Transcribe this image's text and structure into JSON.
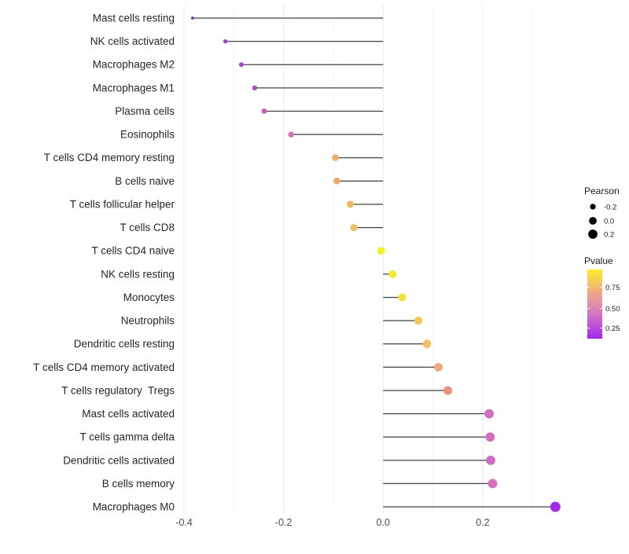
{
  "chart_data": {
    "type": "lollipop",
    "orientation": "horizontal",
    "title": "",
    "xlabel": "",
    "ylabel": "",
    "categories": [
      "Mast cells resting",
      "NK cells activated",
      "Macrophages M2",
      "Macrophages M1",
      "Plasma cells",
      "Eosinophils",
      "T cells CD4 memory resting",
      "B cells naive",
      "T cells follicular helper",
      "T cells CD8",
      "T cells CD4 naive",
      "NK cells resting",
      "Monocytes",
      "Neutrophils",
      "Dendritic cells resting",
      "T cells CD4 memory activated",
      "T cells regulatory  Tregs",
      "Mast cells activated",
      "T cells gamma delta",
      "Dendritic cells activated",
      "B cells memory",
      "Macrophages M0"
    ],
    "series": [
      {
        "name": "Pearson",
        "values": [
          -0.383,
          -0.317,
          -0.285,
          -0.258,
          -0.239,
          -0.185,
          -0.096,
          -0.093,
          -0.066,
          -0.059,
          -0.004,
          0.019,
          0.038,
          0.071,
          0.088,
          0.111,
          0.13,
          0.213,
          0.215,
          0.216,
          0.22,
          0.346
        ]
      }
    ],
    "point_colors": [
      "#7D26C3",
      "#A43BD4",
      "#A843CA",
      "#AF4CC5",
      "#C45BBE",
      "#D473AC",
      "#ECAE6B",
      "#EAAA6C",
      "#EFBA5C",
      "#F0C160",
      "#F6EE24",
      "#F4EA2D",
      "#F2E137",
      "#F2CA57",
      "#F1C066",
      "#EEA77E",
      "#E8927F",
      "#D36FC0",
      "#D36FC0",
      "#D16CC2",
      "#D670BE",
      "#A22BE8"
    ],
    "xlim": [
      -0.45,
      0.39
    ],
    "x_ticks": [
      {
        "value": -0.4,
        "label": "-0.4"
      },
      {
        "value": -0.2,
        "label": "-0.2"
      },
      {
        "value": 0.0,
        "label": "0.0"
      },
      {
        "value": 0.2,
        "label": "0.2"
      }
    ],
    "grid": {
      "on": true,
      "step": 0.1,
      "range": [
        -0.4,
        0.3
      ],
      "major_color": "#EAEAEA",
      "minor_color": "#F5F5F5"
    },
    "stem_color": "#404040",
    "axis_text_color": "#4D4D4D",
    "category_text_color": "#262626",
    "background": "#FFFFFF",
    "legends": {
      "size": {
        "title": "Pearson",
        "dot_color": "#000000",
        "entries": [
          {
            "label": "-0.2",
            "value": -0.2
          },
          {
            "label": "0.0",
            "value": 0.0
          },
          {
            "label": "0.2",
            "value": 0.2
          }
        ]
      },
      "color": {
        "title": "Pvalue",
        "tick_labels": [
          "0.75",
          "0.50",
          "0.25"
        ],
        "gradient_top_to_bottom": [
          "#FCEB2E",
          "#F7CC55",
          "#EFA884",
          "#E28FA8",
          "#D06FC5",
          "#BB4BD9",
          "#A428EA"
        ]
      }
    }
  }
}
